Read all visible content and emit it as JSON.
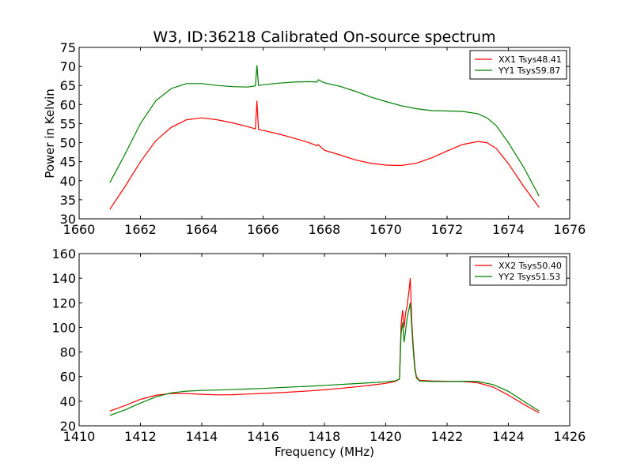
{
  "figure": {
    "title": "W3, ID:36218 Calibrated On-source spectrum",
    "xlabel": "Frequency (MHz)",
    "ylabel": "Power in Kelvin"
  },
  "chart_data": [
    {
      "type": "line",
      "title": "W3, ID:36218 Calibrated On-source spectrum",
      "xlabel": "",
      "ylabel": "Power in Kelvin",
      "xlim": [
        1660,
        1676
      ],
      "ylim": [
        30,
        75
      ],
      "xticks": [
        1660,
        1662,
        1664,
        1666,
        1668,
        1670,
        1672,
        1674,
        1676
      ],
      "yticks": [
        30,
        35,
        40,
        45,
        50,
        55,
        60,
        65,
        70,
        75
      ],
      "grid": false,
      "legend_position": "top-right",
      "series": [
        {
          "name": "XX1 Tsys48.41",
          "color": "#ff0000",
          "x": [
            1661.0,
            1661.5,
            1662.0,
            1662.5,
            1663.0,
            1663.5,
            1664.0,
            1664.5,
            1665.0,
            1665.5,
            1665.75,
            1665.8,
            1665.85,
            1666.0,
            1666.5,
            1667.0,
            1667.5,
            1667.75,
            1667.8,
            1668.0,
            1668.5,
            1669.0,
            1669.5,
            1670.0,
            1670.5,
            1671.0,
            1671.5,
            1672.0,
            1672.5,
            1673.0,
            1673.3,
            1673.6,
            1674.0,
            1674.5,
            1675.0
          ],
          "y": [
            32.5,
            38.5,
            45.0,
            50.5,
            54.0,
            56.0,
            56.5,
            56.0,
            55.2,
            54.2,
            53.6,
            61.0,
            53.5,
            53.2,
            52.3,
            51.2,
            50.0,
            49.2,
            49.5,
            48.0,
            46.8,
            45.5,
            44.6,
            44.1,
            44.0,
            44.6,
            46.0,
            47.8,
            49.5,
            50.3,
            50.0,
            48.5,
            44.5,
            38.5,
            33.0
          ]
        },
        {
          "name": "YY1 Tsys59.87",
          "color": "#008000",
          "x": [
            1661.0,
            1661.5,
            1662.0,
            1662.5,
            1663.0,
            1663.5,
            1664.0,
            1664.5,
            1665.0,
            1665.5,
            1665.75,
            1665.8,
            1665.85,
            1666.0,
            1666.5,
            1667.0,
            1667.5,
            1667.75,
            1667.8,
            1668.0,
            1668.5,
            1669.0,
            1669.5,
            1670.0,
            1670.5,
            1671.0,
            1671.5,
            1672.0,
            1672.5,
            1673.0,
            1673.3,
            1673.6,
            1674.0,
            1674.5,
            1675.0
          ],
          "y": [
            39.5,
            47.0,
            55.0,
            61.0,
            64.2,
            65.5,
            65.5,
            65.0,
            64.7,
            64.6,
            64.9,
            70.3,
            65.0,
            65.2,
            65.6,
            65.9,
            66.0,
            65.9,
            66.5,
            65.7,
            64.8,
            63.5,
            62.0,
            60.8,
            59.7,
            58.9,
            58.4,
            58.3,
            58.2,
            57.6,
            56.5,
            54.5,
            50.0,
            43.5,
            36.0
          ]
        }
      ]
    },
    {
      "type": "line",
      "title": "",
      "xlabel": "Frequency (MHz)",
      "ylabel": "",
      "xlim": [
        1410,
        1426
      ],
      "ylim": [
        20,
        160
      ],
      "xticks": [
        1410,
        1412,
        1414,
        1416,
        1418,
        1420,
        1422,
        1424,
        1426
      ],
      "yticks": [
        20,
        40,
        60,
        80,
        100,
        120,
        140,
        160
      ],
      "grid": false,
      "legend_position": "top-right",
      "series": [
        {
          "name": "XX2 Tsys50.40",
          "color": "#ff0000",
          "x": [
            1411.0,
            1411.5,
            1412.0,
            1412.5,
            1413.0,
            1413.5,
            1414.0,
            1414.5,
            1415.0,
            1415.5,
            1416.0,
            1416.5,
            1417.0,
            1417.5,
            1418.0,
            1418.5,
            1419.0,
            1419.5,
            1420.0,
            1420.3,
            1420.45,
            1420.5,
            1420.55,
            1420.6,
            1420.65,
            1420.7,
            1420.75,
            1420.8,
            1420.85,
            1420.9,
            1420.95,
            1421.0,
            1421.1,
            1421.5,
            1422.0,
            1422.5,
            1423.0,
            1423.5,
            1424.0,
            1424.5,
            1425.0
          ],
          "y": [
            32.0,
            36.5,
            41.5,
            44.8,
            46.3,
            46.2,
            45.6,
            45.2,
            45.3,
            45.8,
            46.3,
            46.9,
            47.6,
            48.4,
            49.3,
            50.4,
            51.6,
            53.0,
            54.5,
            56.0,
            58.0,
            102.0,
            114.0,
            100.0,
            112.0,
            118.0,
            128.0,
            140.0,
            105.0,
            84.0,
            68.0,
            60.0,
            57.0,
            56.5,
            56.2,
            56.0,
            55.0,
            51.5,
            45.0,
            37.5,
            30.5
          ]
        },
        {
          "name": "YY2 Tsys51.53",
          "color": "#008000",
          "x": [
            1411.0,
            1411.5,
            1412.0,
            1412.5,
            1413.0,
            1413.5,
            1414.0,
            1414.5,
            1415.0,
            1415.5,
            1416.0,
            1416.5,
            1417.0,
            1417.5,
            1418.0,
            1418.5,
            1419.0,
            1419.5,
            1420.0,
            1420.3,
            1420.45,
            1420.5,
            1420.55,
            1420.6,
            1420.65,
            1420.7,
            1420.75,
            1420.8,
            1420.85,
            1420.9,
            1420.95,
            1421.0,
            1421.1,
            1421.5,
            1422.0,
            1422.5,
            1423.0,
            1423.5,
            1424.0,
            1424.5,
            1425.0
          ],
          "y": [
            28.5,
            33.0,
            38.5,
            43.5,
            46.8,
            48.2,
            48.8,
            49.1,
            49.4,
            49.9,
            50.4,
            51.0,
            51.6,
            52.2,
            52.9,
            53.6,
            54.3,
            55.0,
            55.8,
            56.5,
            58.0,
            95.0,
            104.0,
            88.0,
            98.0,
            108.0,
            114.0,
            120.0,
            100.0,
            80.0,
            66.0,
            59.0,
            56.5,
            56.0,
            56.0,
            56.2,
            56.0,
            53.5,
            48.0,
            40.0,
            32.0
          ]
        }
      ]
    }
  ]
}
